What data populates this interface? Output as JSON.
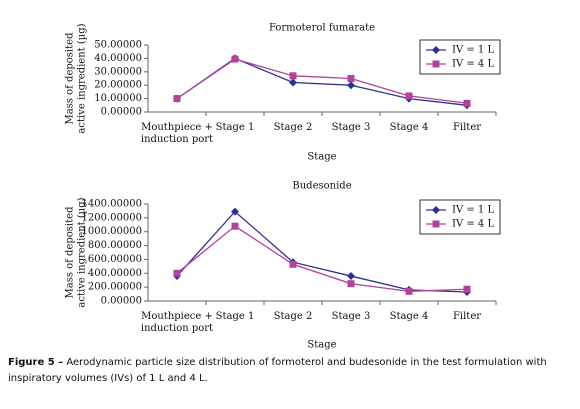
{
  "chart_data": [
    {
      "type": "line",
      "title": "Formoterol fumarate",
      "ylabel": [
        "Mass of deposited",
        "active ingredient (µg)"
      ],
      "xlabel": "Stage",
      "categories": [
        "Mouthpiece + induction port",
        "Stage 1",
        "Stage 2",
        "Stage 3",
        "Stage 4",
        "Filter"
      ],
      "series": [
        {
          "name": "IV = 1 L",
          "color": "#2e3192",
          "marker": "diamond",
          "values": [
            10,
            40,
            22,
            20,
            10,
            5
          ]
        },
        {
          "name": "IV = 4 L",
          "color": "#b0449a",
          "marker": "square",
          "values": [
            10,
            39.5,
            27,
            25,
            12,
            6.5
          ]
        }
      ],
      "ylim": [
        0,
        50
      ],
      "yticks": [
        {
          "value": 0,
          "label": "0.00000"
        },
        {
          "value": 10,
          "label": "10.00000"
        },
        {
          "value": 20,
          "label": "20.00000"
        },
        {
          "value": 30,
          "label": "30.00000"
        },
        {
          "value": 40,
          "label": "40.00000"
        },
        {
          "value": 50,
          "label": "50.00000"
        }
      ],
      "grid": false,
      "legend": "upper right"
    },
    {
      "type": "line",
      "title": "Budesonide",
      "ylabel": [
        "Mass of deposited",
        "active ingredient (µg)"
      ],
      "xlabel": "Stage",
      "categories": [
        "Mouthpiece + induction port",
        "Stage 1",
        "Stage 2",
        "Stage 3",
        "Stage 4",
        "Filter"
      ],
      "series": [
        {
          "name": "IV = 1 L",
          "color": "#2e3192",
          "marker": "diamond",
          "values": [
            360,
            1290,
            560,
            360,
            160,
            130
          ]
        },
        {
          "name": "IV = 4 L",
          "color": "#b0449a",
          "marker": "square",
          "values": [
            400,
            1080,
            530,
            250,
            140,
            170
          ]
        }
      ],
      "ylim": [
        0,
        1400
      ],
      "yticks": [
        {
          "value": 0,
          "label": "0.00000"
        },
        {
          "value": 200,
          "label": "200.00000"
        },
        {
          "value": 400,
          "label": "400.00000"
        },
        {
          "value": 600,
          "label": "600.00000"
        },
        {
          "value": 800,
          "label": "800.00000"
        },
        {
          "value": 1000,
          "label": "1000.00000"
        },
        {
          "value": 1200,
          "label": "1200.00000"
        },
        {
          "value": 1400,
          "label": "1400.00000"
        }
      ],
      "grid": false,
      "legend": "upper right"
    }
  ],
  "caption": {
    "label": "Figure 5 –",
    "text": "Aerodynamic particle size distribution of formoterol and budesonide in the test formulation with inspiratory volumes (IVs) of 1 L and 4 L."
  }
}
